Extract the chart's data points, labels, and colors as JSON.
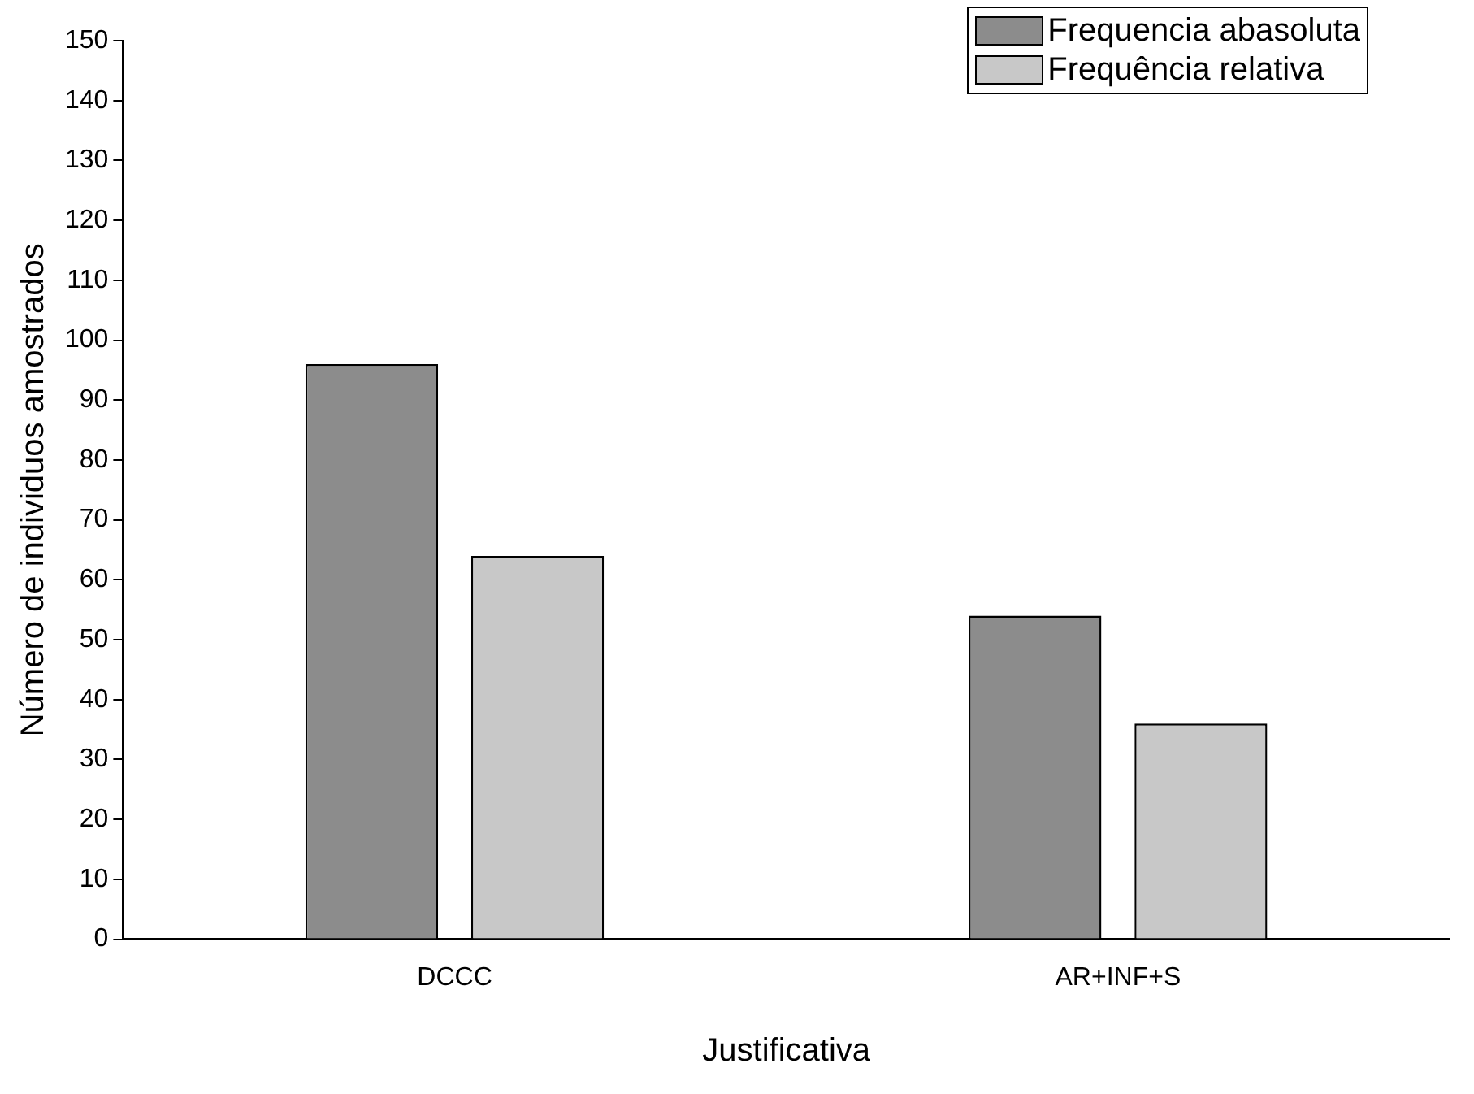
{
  "chart_data": {
    "type": "bar",
    "xlabel": "Justificativa",
    "ylabel": "Número de individuos amostrados",
    "categories": [
      "DCCC",
      "AR+INF+S"
    ],
    "series": [
      {
        "name": "Frequencia abasoluta",
        "color": "#8c8c8c",
        "values": [
          96,
          54
        ]
      },
      {
        "name": "Frequência relativa",
        "color": "#c8c8c8",
        "values": [
          64,
          36
        ]
      }
    ],
    "ylim": [
      0,
      150
    ],
    "yticks": [
      0,
      10,
      20,
      30,
      40,
      50,
      60,
      70,
      80,
      90,
      100,
      110,
      120,
      130,
      140,
      150
    ],
    "grid": false,
    "legend": "top right"
  }
}
